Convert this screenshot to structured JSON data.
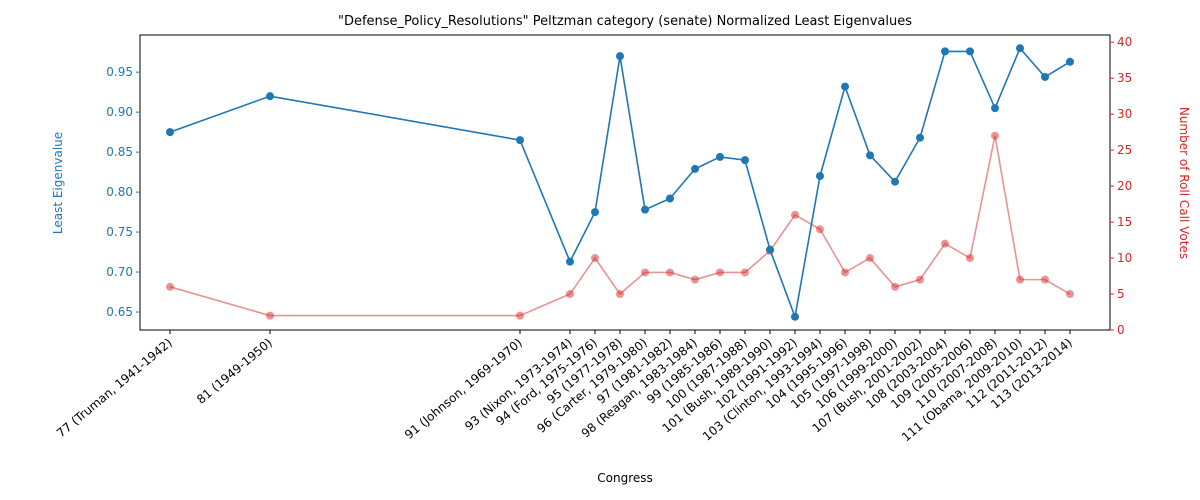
{
  "chart_data": {
    "type": "line",
    "title": "\"Defense_Policy_Resolutions\" Peltzman category (senate) Normalized Least Eigenvalues",
    "xlabel": "Congress",
    "ylabel_left": "Least Eigenvalue",
    "ylabel_right": "Number of Roll Call Votes",
    "categories": [
      "77 (Truman, 1941-1942)",
      "81 (1949-1950)",
      "91 (Johnson, 1969-1970)",
      "93 (Nixon, 1973-1974)",
      "94 (Ford, 1975-1976)",
      "95 (1977-1978)",
      "96 (Carter, 1979-1980)",
      "97 (1981-1982)",
      "98 (Reagan, 1983-1984)",
      "99 (1985-1986)",
      "100 (1987-1988)",
      "101 (Bush, 1989-1990)",
      "102 (1991-1992)",
      "103 (Clinton, 1993-1994)",
      "104 (1995-1996)",
      "105 (1997-1998)",
      "106 (1999-2000)",
      "107 (Bush, 2001-2002)",
      "108 (2003-2004)",
      "109 (2005-2006)",
      "110 (2007-2008)",
      "111 (Obama, 2009-2010)",
      "112 (2011-2012)",
      "113 (2013-2014)"
    ],
    "x": [
      77,
      81,
      91,
      93,
      94,
      95,
      96,
      97,
      98,
      99,
      100,
      101,
      102,
      103,
      104,
      105,
      106,
      107,
      108,
      109,
      110,
      111,
      112,
      113
    ],
    "series": [
      {
        "name": "Least Eigenvalue",
        "axis": "left",
        "color": "#1f77b4",
        "values": [
          0.875,
          0.92,
          0.865,
          0.713,
          0.775,
          0.97,
          0.778,
          0.792,
          0.829,
          0.844,
          0.84,
          0.728,
          0.644,
          0.82,
          0.932,
          0.846,
          0.813,
          0.868,
          0.976,
          0.976,
          0.905,
          0.98,
          0.944,
          0.963
        ]
      },
      {
        "name": "Number of Roll Call Votes",
        "axis": "right",
        "color": "#d62728",
        "values": [
          6,
          2,
          2,
          5,
          10,
          5,
          8,
          8,
          7,
          8,
          8,
          11,
          16,
          14,
          8,
          10,
          6,
          7,
          12,
          10,
          27,
          7,
          7,
          5
        ]
      }
    ],
    "xlim": [
      75.8,
      114.6
    ],
    "ylim_left": [
      0.6275,
      0.9965
    ],
    "ylim_right": [
      0,
      41
    ],
    "yticks_left": [
      "0.65",
      "0.70",
      "0.75",
      "0.80",
      "0.85",
      "0.90",
      "0.95"
    ],
    "yticks_right": [
      "0",
      "5",
      "10",
      "15",
      "20",
      "25",
      "30",
      "35",
      "40"
    ],
    "grid": false,
    "legend": "none"
  }
}
